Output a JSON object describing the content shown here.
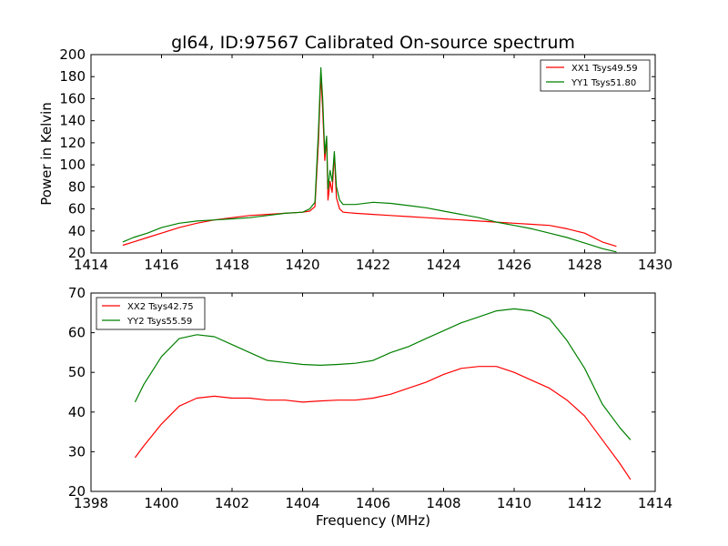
{
  "figure_title": "gl64, ID:97567 Calibrated On-source spectrum",
  "chart_data": [
    {
      "type": "line",
      "xlabel": "",
      "ylabel": "Power in Kelvin",
      "xlim": [
        1414,
        1430
      ],
      "ylim": [
        20,
        200
      ],
      "xticks": [
        1414,
        1416,
        1418,
        1420,
        1422,
        1424,
        1426,
        1428,
        1430
      ],
      "yticks": [
        20,
        40,
        60,
        80,
        100,
        120,
        140,
        160,
        180,
        200
      ],
      "grid": false,
      "legend_position": "top-right",
      "series": [
        {
          "name": "XX1 Tsys49.59",
          "color": "#ff0000",
          "x": [
            1414.9,
            1415.2,
            1415.6,
            1416.0,
            1416.5,
            1417.0,
            1417.5,
            1418.0,
            1418.5,
            1419.0,
            1419.5,
            1420.0,
            1420.2,
            1420.35,
            1420.45,
            1420.52,
            1420.57,
            1420.63,
            1420.68,
            1420.72,
            1420.78,
            1420.84,
            1420.9,
            1420.96,
            1421.05,
            1421.15,
            1421.5,
            1422.0,
            1422.5,
            1423.0,
            1423.5,
            1424.0,
            1424.5,
            1425.0,
            1425.5,
            1426.0,
            1426.5,
            1427.0,
            1427.5,
            1428.0,
            1428.5,
            1428.9
          ],
          "y": [
            27,
            30,
            34,
            38,
            43,
            47,
            50,
            52,
            54,
            55,
            56,
            57,
            58,
            62,
            120,
            182,
            150,
            104,
            125,
            68,
            85,
            75,
            110,
            70,
            60,
            57,
            56,
            55,
            54,
            53,
            52,
            51,
            50,
            49,
            48,
            47,
            46,
            45,
            42,
            38,
            30,
            26
          ]
        },
        {
          "name": "YY1 Tsys51.80",
          "color": "#008000",
          "x": [
            1414.9,
            1415.2,
            1415.6,
            1416.0,
            1416.5,
            1417.0,
            1417.5,
            1418.0,
            1418.5,
            1419.0,
            1419.5,
            1420.0,
            1420.2,
            1420.35,
            1420.45,
            1420.52,
            1420.57,
            1420.63,
            1420.68,
            1420.72,
            1420.78,
            1420.84,
            1420.9,
            1420.96,
            1421.05,
            1421.15,
            1421.5,
            1422.0,
            1422.5,
            1423.0,
            1423.5,
            1424.0,
            1424.5,
            1425.0,
            1425.5,
            1426.0,
            1426.5,
            1427.0,
            1427.5,
            1428.0,
            1428.5,
            1428.9
          ],
          "y": [
            30,
            34,
            38,
            43,
            47,
            49,
            50,
            51,
            52,
            54,
            56,
            57,
            60,
            66,
            130,
            188,
            160,
            110,
            126,
            78,
            95,
            85,
            112,
            80,
            68,
            64,
            64,
            66,
            65,
            63,
            61,
            58,
            55,
            52,
            48,
            45,
            42,
            38,
            34,
            29,
            24,
            21
          ]
        }
      ]
    },
    {
      "type": "line",
      "xlabel": "Frequency (MHz)",
      "ylabel": "",
      "xlim": [
        1398,
        1414
      ],
      "ylim": [
        20,
        70
      ],
      "xticks": [
        1398,
        1400,
        1402,
        1404,
        1406,
        1408,
        1410,
        1412,
        1414
      ],
      "yticks": [
        20,
        30,
        40,
        50,
        60,
        70
      ],
      "grid": false,
      "legend_position": "top-left",
      "series": [
        {
          "name": "XX2 Tsys42.75",
          "color": "#ff0000",
          "x": [
            1399.25,
            1399.5,
            1400.0,
            1400.5,
            1401.0,
            1401.5,
            1402.0,
            1402.5,
            1403.0,
            1403.5,
            1404.0,
            1404.5,
            1405.0,
            1405.5,
            1406.0,
            1406.5,
            1407.0,
            1407.5,
            1408.0,
            1408.5,
            1409.0,
            1409.5,
            1410.0,
            1410.5,
            1411.0,
            1411.5,
            1412.0,
            1412.5,
            1413.0,
            1413.3
          ],
          "y": [
            28.5,
            31.5,
            37,
            41.5,
            43.5,
            44,
            43.5,
            43.5,
            43,
            43,
            42.5,
            42.8,
            43,
            43,
            43.5,
            44.5,
            46,
            47.5,
            49.5,
            51,
            51.5,
            51.5,
            50,
            48,
            46,
            43,
            39,
            33,
            27,
            23
          ]
        },
        {
          "name": "YY2 Tsys55.59",
          "color": "#008000",
          "x": [
            1399.25,
            1399.5,
            1400.0,
            1400.5,
            1401.0,
            1401.5,
            1402.0,
            1402.5,
            1403.0,
            1403.5,
            1404.0,
            1404.5,
            1405.0,
            1405.5,
            1406.0,
            1406.5,
            1407.0,
            1407.5,
            1408.0,
            1408.5,
            1409.0,
            1409.5,
            1410.0,
            1410.5,
            1411.0,
            1411.5,
            1412.0,
            1412.5,
            1413.0,
            1413.3
          ],
          "y": [
            42.5,
            47,
            54,
            58.5,
            59.5,
            59,
            57,
            55,
            53,
            52.5,
            52,
            51.8,
            52,
            52.3,
            53,
            55,
            56.5,
            58.5,
            60.5,
            62.5,
            64,
            65.5,
            66,
            65.5,
            63.5,
            58,
            51,
            42,
            36,
            33
          ]
        }
      ]
    }
  ]
}
